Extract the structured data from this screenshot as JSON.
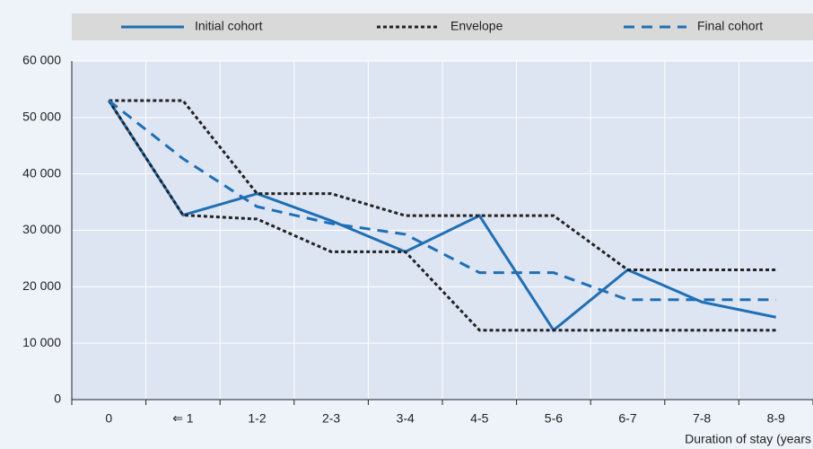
{
  "chart_data": {
    "type": "line",
    "categories": [
      "0",
      "⇐ 1",
      "1-2",
      "2-3",
      "3-4",
      "4-5",
      "5-6",
      "6-7",
      "7-8",
      "8-9"
    ],
    "x_label": "Duration of stay (years",
    "series": [
      {
        "name": "Initial cohort",
        "color": "#1f6fb5",
        "dash": "solid",
        "values": [
          53000,
          32700,
          36500,
          31700,
          26200,
          32600,
          12300,
          23000,
          17300,
          14600
        ]
      },
      {
        "name": "Envelope",
        "color": "#222222",
        "dash": "dotted",
        "values_upper": [
          53000,
          53000,
          36500,
          36500,
          32600,
          32600,
          32600,
          23000,
          23000,
          23000
        ],
        "values_lower": [
          53000,
          32700,
          32000,
          26200,
          26200,
          12300,
          12300,
          12300,
          12300,
          12300
        ]
      },
      {
        "name": "Final cohort",
        "color": "#1f6fb5",
        "dash": "dashed",
        "values": [
          53000,
          42700,
          34200,
          31200,
          29300,
          22500,
          22500,
          17700,
          17700,
          17700
        ]
      }
    ],
    "ylim": [
      0,
      60000
    ],
    "yticks": [
      0,
      {
        "value": 10000,
        "label": "10 000"
      },
      {
        "value": 20000,
        "label": "20 000"
      },
      {
        "value": 30000,
        "label": "30 000"
      },
      {
        "value": 40000,
        "label": "40 000"
      },
      {
        "value": 50000,
        "label": "50 000"
      },
      {
        "value": 60000,
        "label": "60 000"
      }
    ],
    "grid": true
  }
}
